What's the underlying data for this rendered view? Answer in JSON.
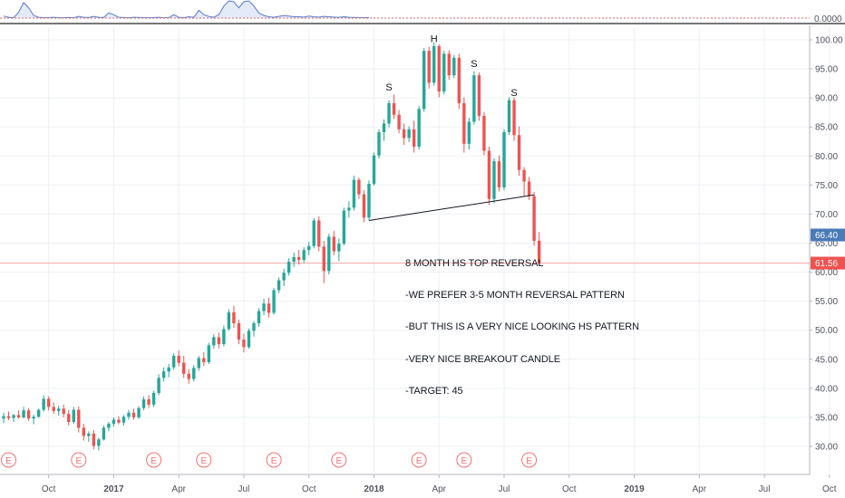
{
  "chart_data": {
    "type": "candlestick",
    "indicator_pane": {
      "value_label": "0.0000",
      "values": [
        0.12,
        0.05,
        0.02,
        0.35,
        0.9,
        0.6,
        0.15,
        0.05,
        0.02,
        0.03,
        0.05,
        0.02,
        0.02,
        0.04,
        0.02,
        0.1,
        0.05,
        0.03,
        0.1,
        0.05,
        0.04,
        0.3,
        0.2,
        0.05,
        0.03,
        0.02,
        0.05,
        0.04,
        0.03,
        0.02,
        0.03,
        0.05,
        0.02,
        0.02,
        0.2,
        0.05,
        0.02,
        0.08,
        0.05,
        0.45,
        0.2,
        0.1,
        0.05,
        0.2,
        0.7,
        1.0,
        0.95,
        0.6,
        0.95,
        1.0,
        0.7,
        0.3,
        0.15,
        0.08,
        0.05,
        0.1,
        0.15,
        0.12,
        0.08,
        0.08,
        0.06,
        0.12,
        0.08,
        0.06,
        0.1,
        0.08,
        0.06,
        0.05,
        0.08,
        0.05,
        0.04,
        0.03,
        0.02,
        0.03
      ]
    },
    "y_axis": {
      "min": 25,
      "max": 102,
      "tick_labels": [
        "100.00",
        "95.00",
        "90.00",
        "85.00",
        "80.00",
        "75.00",
        "70.00",
        "65.00",
        "60.00",
        "55.00",
        "50.00",
        "45.00",
        "40.00",
        "35.00",
        "30.00"
      ],
      "tick_values": [
        100,
        95,
        90,
        85,
        80,
        75,
        70,
        65,
        60,
        55,
        50,
        45,
        40,
        35,
        30
      ]
    },
    "x_axis": {
      "labels": [
        "Oct",
        "2017",
        "Apr",
        "Jul",
        "Oct",
        "2018",
        "Apr",
        "Jul",
        "Oct",
        "2019",
        "Apr",
        "Jul",
        "Oct"
      ],
      "bold": [
        false,
        true,
        false,
        false,
        false,
        true,
        false,
        false,
        false,
        true,
        false,
        false,
        false
      ],
      "label_week_index": [
        9,
        22,
        35,
        48,
        61,
        74,
        87,
        100,
        113,
        126,
        139,
        152,
        165
      ]
    },
    "price_labels": [
      {
        "text": "66.40",
        "value": 66.4,
        "color": "#4a7bb7"
      },
      {
        "text": "61.56",
        "value": 61.56,
        "color": "#ef5350"
      }
    ],
    "horizontal_line_value": 61.56,
    "earnings_marker": "E",
    "earnings_week_index": [
      1,
      15,
      30,
      40,
      54,
      67,
      83,
      92,
      105
    ],
    "candles": [
      {
        "o": 34.8,
        "h": 35.8,
        "l": 34.0,
        "c": 35.2
      },
      {
        "o": 35.2,
        "h": 36.0,
        "l": 34.5,
        "c": 34.9
      },
      {
        "o": 34.9,
        "h": 35.6,
        "l": 34.2,
        "c": 35.4
      },
      {
        "o": 35.4,
        "h": 36.2,
        "l": 34.8,
        "c": 35.0
      },
      {
        "o": 35.0,
        "h": 36.8,
        "l": 34.8,
        "c": 36.2
      },
      {
        "o": 36.2,
        "h": 36.6,
        "l": 34.4,
        "c": 34.8
      },
      {
        "o": 34.8,
        "h": 35.5,
        "l": 33.8,
        "c": 35.1
      },
      {
        "o": 35.1,
        "h": 36.5,
        "l": 34.9,
        "c": 36.3
      },
      {
        "o": 36.3,
        "h": 38.8,
        "l": 36.0,
        "c": 38.2
      },
      {
        "o": 38.2,
        "h": 38.6,
        "l": 36.2,
        "c": 36.8
      },
      {
        "o": 36.8,
        "h": 37.6,
        "l": 35.6,
        "c": 36.1
      },
      {
        "o": 36.1,
        "h": 37.0,
        "l": 35.3,
        "c": 36.5
      },
      {
        "o": 36.5,
        "h": 37.2,
        "l": 35.0,
        "c": 35.6
      },
      {
        "o": 35.6,
        "h": 36.3,
        "l": 33.6,
        "c": 34.2
      },
      {
        "o": 34.2,
        "h": 36.8,
        "l": 33.9,
        "c": 36.3
      },
      {
        "o": 36.3,
        "h": 36.9,
        "l": 32.4,
        "c": 33.2
      },
      {
        "o": 33.2,
        "h": 33.9,
        "l": 31.0,
        "c": 31.8
      },
      {
        "o": 31.8,
        "h": 32.6,
        "l": 30.8,
        "c": 32.2
      },
      {
        "o": 32.2,
        "h": 32.8,
        "l": 29.5,
        "c": 30.1
      },
      {
        "o": 30.1,
        "h": 31.5,
        "l": 29.3,
        "c": 31.2
      },
      {
        "o": 31.2,
        "h": 33.6,
        "l": 31.0,
        "c": 33.2
      },
      {
        "o": 33.2,
        "h": 34.2,
        "l": 32.6,
        "c": 33.9
      },
      {
        "o": 33.9,
        "h": 35.0,
        "l": 33.4,
        "c": 34.6
      },
      {
        "o": 34.6,
        "h": 35.2,
        "l": 33.8,
        "c": 34.1
      },
      {
        "o": 34.1,
        "h": 35.4,
        "l": 33.6,
        "c": 35.1
      },
      {
        "o": 35.1,
        "h": 36.3,
        "l": 34.6,
        "c": 35.8
      },
      {
        "o": 35.8,
        "h": 36.5,
        "l": 34.6,
        "c": 35.0
      },
      {
        "o": 35.0,
        "h": 36.9,
        "l": 34.7,
        "c": 36.6
      },
      {
        "o": 36.6,
        "h": 38.6,
        "l": 36.2,
        "c": 38.1
      },
      {
        "o": 38.1,
        "h": 38.8,
        "l": 36.6,
        "c": 37.2
      },
      {
        "o": 37.2,
        "h": 39.6,
        "l": 36.8,
        "c": 39.2
      },
      {
        "o": 39.2,
        "h": 42.4,
        "l": 38.8,
        "c": 41.8
      },
      {
        "o": 41.8,
        "h": 43.6,
        "l": 41.2,
        "c": 42.9
      },
      {
        "o": 42.9,
        "h": 44.2,
        "l": 41.9,
        "c": 43.6
      },
      {
        "o": 43.6,
        "h": 46.0,
        "l": 43.2,
        "c": 45.6
      },
      {
        "o": 45.6,
        "h": 46.5,
        "l": 43.8,
        "c": 44.4
      },
      {
        "o": 44.4,
        "h": 45.6,
        "l": 41.8,
        "c": 42.5
      },
      {
        "o": 42.5,
        "h": 43.3,
        "l": 40.8,
        "c": 41.6
      },
      {
        "o": 41.6,
        "h": 44.0,
        "l": 41.2,
        "c": 43.5
      },
      {
        "o": 43.5,
        "h": 45.6,
        "l": 43.0,
        "c": 45.2
      },
      {
        "o": 45.2,
        "h": 46.2,
        "l": 43.8,
        "c": 44.5
      },
      {
        "o": 44.5,
        "h": 47.8,
        "l": 44.2,
        "c": 47.4
      },
      {
        "o": 47.4,
        "h": 49.3,
        "l": 46.8,
        "c": 48.8
      },
      {
        "o": 48.8,
        "h": 49.6,
        "l": 46.9,
        "c": 47.6
      },
      {
        "o": 47.6,
        "h": 50.8,
        "l": 47.2,
        "c": 50.2
      },
      {
        "o": 50.2,
        "h": 53.6,
        "l": 49.9,
        "c": 53.1
      },
      {
        "o": 53.1,
        "h": 54.2,
        "l": 50.4,
        "c": 51.2
      },
      {
        "o": 51.2,
        "h": 51.8,
        "l": 47.6,
        "c": 48.4
      },
      {
        "o": 48.4,
        "h": 49.4,
        "l": 46.2,
        "c": 47.1
      },
      {
        "o": 47.1,
        "h": 50.3,
        "l": 46.8,
        "c": 49.9
      },
      {
        "o": 49.9,
        "h": 51.6,
        "l": 48.9,
        "c": 51.2
      },
      {
        "o": 51.2,
        "h": 53.8,
        "l": 50.6,
        "c": 53.3
      },
      {
        "o": 53.3,
        "h": 55.4,
        "l": 52.6,
        "c": 54.6
      },
      {
        "o": 54.6,
        "h": 55.6,
        "l": 52.2,
        "c": 53.0
      },
      {
        "o": 53.0,
        "h": 57.3,
        "l": 52.7,
        "c": 56.9
      },
      {
        "o": 56.9,
        "h": 59.1,
        "l": 56.4,
        "c": 58.6
      },
      {
        "o": 58.6,
        "h": 60.6,
        "l": 57.6,
        "c": 59.9
      },
      {
        "o": 59.9,
        "h": 62.4,
        "l": 59.4,
        "c": 61.8
      },
      {
        "o": 61.8,
        "h": 63.4,
        "l": 60.9,
        "c": 62.6
      },
      {
        "o": 62.6,
        "h": 63.8,
        "l": 61.3,
        "c": 62.1
      },
      {
        "o": 62.1,
        "h": 64.3,
        "l": 61.6,
        "c": 63.8
      },
      {
        "o": 63.8,
        "h": 65.2,
        "l": 62.9,
        "c": 64.5
      },
      {
        "o": 64.5,
        "h": 69.3,
        "l": 64.1,
        "c": 68.9
      },
      {
        "o": 68.9,
        "h": 69.6,
        "l": 63.6,
        "c": 64.4
      },
      {
        "o": 64.4,
        "h": 65.4,
        "l": 58.1,
        "c": 60.2
      },
      {
        "o": 60.2,
        "h": 66.6,
        "l": 59.6,
        "c": 66.1
      },
      {
        "o": 66.1,
        "h": 67.1,
        "l": 62.9,
        "c": 63.6
      },
      {
        "o": 63.6,
        "h": 65.8,
        "l": 61.9,
        "c": 64.9
      },
      {
        "o": 64.9,
        "h": 71.1,
        "l": 64.6,
        "c": 70.6
      },
      {
        "o": 70.6,
        "h": 72.2,
        "l": 69.4,
        "c": 71.1
      },
      {
        "o": 71.1,
        "h": 76.6,
        "l": 70.6,
        "c": 75.9
      },
      {
        "o": 75.9,
        "h": 76.3,
        "l": 72.6,
        "c": 73.4
      },
      {
        "o": 73.4,
        "h": 74.1,
        "l": 68.6,
        "c": 69.4
      },
      {
        "o": 69.4,
        "h": 75.8,
        "l": 68.9,
        "c": 75.2
      },
      {
        "o": 75.2,
        "h": 80.6,
        "l": 74.9,
        "c": 80.1
      },
      {
        "o": 80.1,
        "h": 84.6,
        "l": 79.6,
        "c": 84.1
      },
      {
        "o": 84.1,
        "h": 86.3,
        "l": 82.6,
        "c": 85.6
      },
      {
        "o": 85.6,
        "h": 89.6,
        "l": 84.9,
        "c": 89.1
      },
      {
        "o": 89.1,
        "h": 90.6,
        "l": 86.4,
        "c": 87.1
      },
      {
        "o": 87.1,
        "h": 87.9,
        "l": 83.9,
        "c": 84.6
      },
      {
        "o": 84.6,
        "h": 85.6,
        "l": 81.9,
        "c": 83.1
      },
      {
        "o": 83.1,
        "h": 85.1,
        "l": 82.4,
        "c": 84.6
      },
      {
        "o": 84.6,
        "h": 86.1,
        "l": 80.6,
        "c": 81.6
      },
      {
        "o": 81.6,
        "h": 88.6,
        "l": 81.1,
        "c": 88.1
      },
      {
        "o": 88.1,
        "h": 98.6,
        "l": 87.6,
        "c": 98.1
      },
      {
        "o": 98.1,
        "h": 98.8,
        "l": 91.6,
        "c": 92.6
      },
      {
        "o": 92.6,
        "h": 99.6,
        "l": 92.1,
        "c": 98.9
      },
      {
        "o": 98.9,
        "h": 99.2,
        "l": 90.1,
        "c": 91.1
      },
      {
        "o": 91.1,
        "h": 98.1,
        "l": 90.6,
        "c": 97.6
      },
      {
        "o": 97.6,
        "h": 98.2,
        "l": 93.1,
        "c": 93.9
      },
      {
        "o": 93.9,
        "h": 97.4,
        "l": 93.4,
        "c": 96.9
      },
      {
        "o": 96.9,
        "h": 97.6,
        "l": 88.1,
        "c": 89.1
      },
      {
        "o": 89.1,
        "h": 90.1,
        "l": 80.6,
        "c": 82.1
      },
      {
        "o": 82.1,
        "h": 86.6,
        "l": 81.1,
        "c": 85.9
      },
      {
        "o": 85.9,
        "h": 94.6,
        "l": 85.4,
        "c": 93.9
      },
      {
        "o": 93.9,
        "h": 94.4,
        "l": 86.1,
        "c": 86.9
      },
      {
        "o": 86.9,
        "h": 87.6,
        "l": 80.1,
        "c": 80.9
      },
      {
        "o": 80.9,
        "h": 81.6,
        "l": 71.6,
        "c": 72.6
      },
      {
        "o": 72.6,
        "h": 79.6,
        "l": 71.9,
        "c": 79.1
      },
      {
        "o": 79.1,
        "h": 80.1,
        "l": 73.9,
        "c": 74.6
      },
      {
        "o": 74.6,
        "h": 84.6,
        "l": 74.1,
        "c": 84.1
      },
      {
        "o": 84.1,
        "h": 90.1,
        "l": 83.6,
        "c": 89.6
      },
      {
        "o": 89.6,
        "h": 90.1,
        "l": 82.6,
        "c": 83.6
      },
      {
        "o": 83.6,
        "h": 85.1,
        "l": 76.6,
        "c": 77.6
      },
      {
        "o": 77.6,
        "h": 78.1,
        "l": 73.1,
        "c": 75.6
      },
      {
        "o": 75.6,
        "h": 76.4,
        "l": 72.4,
        "c": 73.1
      },
      {
        "o": 73.1,
        "h": 73.8,
        "l": 64.6,
        "c": 65.4
      },
      {
        "o": 65.4,
        "h": 66.9,
        "l": 61.2,
        "c": 61.56
      }
    ],
    "neckline": {
      "from": {
        "i": 73,
        "v": 68.9
      },
      "to": {
        "i": 106,
        "v": 73.3
      }
    },
    "pattern_labels": [
      {
        "text": "S",
        "i": 77,
        "v": 91.3
      },
      {
        "text": "H",
        "i": 86,
        "v": 99.6
      },
      {
        "text": "S",
        "i": 94,
        "v": 95.3
      },
      {
        "text": "S",
        "i": 102,
        "v": 90.3
      }
    ],
    "annotation": [
      "8 MONTH HS TOP REVERSAL",
      "-WE PREFER 3-5 MONTH REVERSAL PATTERN",
      "-BUT THIS IS A VERY NICE LOOKING HS PATTERN",
      "-VERY NICE BREAKOUT CANDLE",
      "-TARGET: 45"
    ]
  },
  "colors": {
    "up": "#26a69a",
    "down": "#ef5350",
    "grid": "#eef0f4",
    "axis_text": "#50535e",
    "indicator_line": "#5b7bd0",
    "indicator_fill": "#e4ebf8",
    "earnings_circle": "#f37272"
  }
}
